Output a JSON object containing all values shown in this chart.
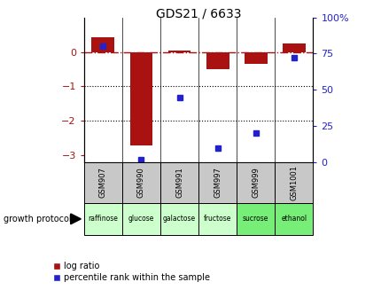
{
  "title": "GDS21 / 6633",
  "samples": [
    "GSM907",
    "GSM990",
    "GSM991",
    "GSM997",
    "GSM999",
    "GSM1001"
  ],
  "conditions": [
    "raffinose",
    "glucose",
    "galactose",
    "fructose",
    "sucrose",
    "ethanol"
  ],
  "log_ratios": [
    0.42,
    -2.72,
    0.05,
    -0.5,
    -0.35,
    0.25
  ],
  "percentile_ranks": [
    80,
    2,
    45,
    10,
    20,
    72
  ],
  "bar_color": "#AA1111",
  "dot_color": "#2222CC",
  "ylim_left": [
    -3.2,
    1.0
  ],
  "ylim_right": [
    0,
    100
  ],
  "yticks_left": [
    -3,
    -2,
    -1,
    0
  ],
  "yticks_right": [
    0,
    25,
    50,
    75,
    100
  ],
  "ytick_right_labels": [
    "0",
    "25",
    "50",
    "75",
    "100%"
  ],
  "dotted_lines": [
    -1,
    -2
  ],
  "cond_colors": [
    "#ccffcc",
    "#ccffcc",
    "#ccffcc",
    "#ccffcc",
    "#77ee77",
    "#77ee77"
  ],
  "legend_log_label": "log ratio",
  "legend_pct_label": "percentile rank within the sample",
  "growth_protocol_label": "growth protocol",
  "bg_color": "#ffffff",
  "bar_width": 0.6
}
